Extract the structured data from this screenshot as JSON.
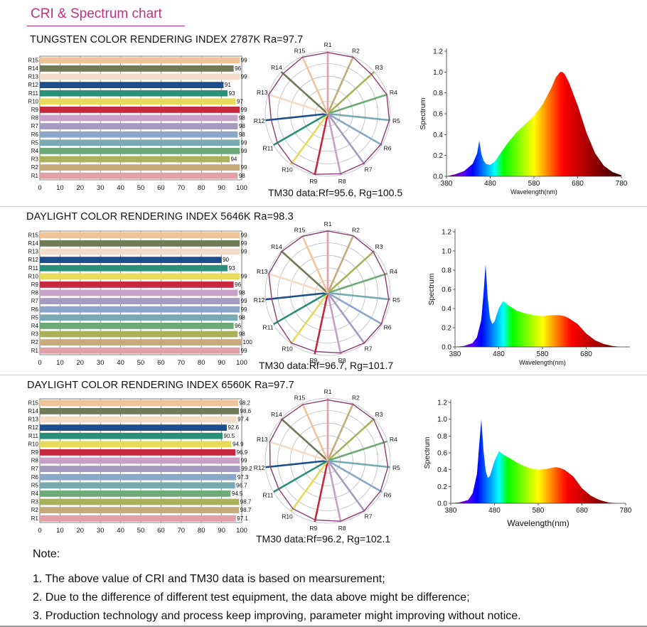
{
  "page_title": "CRI & Spectrum chart",
  "colors": {
    "accent": "#c0307d",
    "R1": "#e0a0a8",
    "R2": "#c7aa7a",
    "R3": "#a9b25a",
    "R4": "#6daa78",
    "R5": "#79aab2",
    "R6": "#8aa6c8",
    "R7": "#a59ac2",
    "R8": "#c8a0c6",
    "R9": "#c6283e",
    "R10": "#e8da5a",
    "R11": "#2a8f78",
    "R12": "#1e4f8c",
    "R13": "#f3dcc8",
    "R14": "#6f7a58",
    "R15": "#f0c49a",
    "polygon": "#8e3a72"
  },
  "blocks": [
    {
      "title": "TUNGSTEN COLOR RENDERING INDEX 2787K Ra=97.7",
      "tm30": "TM30 data:Rf=95.6, Rg=100.5"
    },
    {
      "title": "DAYLIGHT COLOR RENDERING INDEX 5646K  Ra=98.3",
      "tm30": "TM30 data:Rf=96.7, Rg=101.7"
    },
    {
      "title": "DAYLIGHT COLOR RENDERING INDEX 6560K  Ra=97.7",
      "tm30": "TM30 data:Rf=96.2, Rg=102.1"
    }
  ],
  "chart_data": [
    {
      "type": "bar",
      "orientation": "horizontal",
      "categories": [
        "R1",
        "R2",
        "R3",
        "R4",
        "R5",
        "R6",
        "R7",
        "R8",
        "R9",
        "R10",
        "R11",
        "R12",
        "R13",
        "R14",
        "R15"
      ],
      "values": [
        98,
        99,
        94,
        99,
        99,
        98,
        98,
        98,
        99,
        97,
        93,
        91,
        99,
        96,
        99
      ],
      "value_labels": [
        "98",
        "99",
        "94",
        "99",
        "99",
        "98",
        "98",
        "98",
        "99",
        "97",
        "93",
        "91",
        "99",
        "96",
        "99"
      ],
      "xlim": [
        0,
        100
      ],
      "xticks": [
        0,
        10,
        20,
        30,
        40,
        50,
        60,
        70,
        80,
        90,
        100
      ]
    },
    {
      "type": "radar",
      "categories": [
        "R1",
        "R2",
        "R3",
        "R4",
        "R5",
        "R6",
        "R7",
        "R8",
        "R9",
        "R10",
        "R11",
        "R12",
        "R13",
        "R14",
        "R15"
      ],
      "values": [
        98,
        99,
        94,
        99,
        99,
        98,
        98,
        98,
        99,
        97,
        93,
        91,
        99,
        96,
        99
      ]
    },
    {
      "type": "area",
      "xlabel": "Wavelength(nm)",
      "ylabel": "Spectrum",
      "xlim": [
        380,
        780
      ],
      "ylim": [
        0,
        1.2
      ],
      "xtick_labels": [
        "380",
        "480",
        "580",
        "680",
        "780"
      ],
      "ytick_labels": [
        "0.0",
        "0.2",
        "0.4",
        "0.6",
        "0.8",
        "1.0",
        "1.2"
      ],
      "x": [
        380,
        400,
        420,
        440,
        450,
        455,
        460,
        465,
        470,
        480,
        490,
        500,
        520,
        540,
        560,
        580,
        600,
        620,
        630,
        640,
        645,
        650,
        660,
        680,
        700,
        720,
        740,
        760,
        780
      ],
      "y": [
        0.0,
        0.02,
        0.05,
        0.12,
        0.22,
        0.34,
        0.21,
        0.15,
        0.12,
        0.11,
        0.14,
        0.2,
        0.32,
        0.42,
        0.5,
        0.58,
        0.69,
        0.85,
        0.95,
        1.0,
        1.0,
        0.98,
        0.9,
        0.68,
        0.42,
        0.22,
        0.1,
        0.04,
        0.01
      ]
    },
    {
      "type": "bar",
      "orientation": "horizontal",
      "categories": [
        "R1",
        "R2",
        "R3",
        "R4",
        "R5",
        "R6",
        "R7",
        "R8",
        "R9",
        "R10",
        "R11",
        "R12",
        "R13",
        "R14",
        "R15"
      ],
      "values": [
        99,
        100,
        98,
        96,
        98,
        99,
        99,
        98,
        96,
        99,
        93,
        90,
        99,
        99,
        99
      ],
      "value_labels": [
        "99",
        "100",
        "98",
        "96",
        "98",
        "99",
        "99",
        "98",
        "96",
        "99",
        "93",
        "90",
        "99",
        "99",
        "99"
      ],
      "xlim": [
        0,
        100
      ],
      "xticks": [
        0,
        10,
        20,
        30,
        40,
        50,
        60,
        70,
        80,
        90,
        100
      ]
    },
    {
      "type": "radar",
      "categories": [
        "R1",
        "R2",
        "R3",
        "R4",
        "R5",
        "R6",
        "R7",
        "R8",
        "R9",
        "R10",
        "R11",
        "R12",
        "R13",
        "R14",
        "R15"
      ],
      "values": [
        99,
        100,
        98,
        96,
        98,
        99,
        99,
        98,
        96,
        99,
        93,
        90,
        99,
        99,
        99
      ]
    },
    {
      "type": "area",
      "xlabel": "Wavelength(nm)",
      "ylabel": "Spectrum",
      "xlim": [
        380,
        780
      ],
      "ylim": [
        0,
        1.2
      ],
      "xtick_labels": [
        "380",
        "480",
        "580",
        "680"
      ],
      "ytick_labels": [
        "0.0",
        "0.2",
        "0.4",
        "0.6",
        "0.8",
        "1.0",
        "1.2"
      ],
      "x": [
        380,
        400,
        420,
        430,
        440,
        445,
        450,
        455,
        460,
        465,
        470,
        480,
        490,
        500,
        520,
        540,
        560,
        580,
        600,
        620,
        630,
        640,
        660,
        680,
        700,
        720,
        740,
        760,
        780
      ],
      "y": [
        0.0,
        0.01,
        0.04,
        0.1,
        0.28,
        0.55,
        0.86,
        0.5,
        0.3,
        0.24,
        0.26,
        0.4,
        0.48,
        0.44,
        0.38,
        0.35,
        0.33,
        0.32,
        0.33,
        0.33,
        0.32,
        0.3,
        0.24,
        0.14,
        0.07,
        0.03,
        0.01,
        0.0,
        0.0
      ]
    },
    {
      "type": "bar",
      "orientation": "horizontal",
      "categories": [
        "R1",
        "R2",
        "R3",
        "R4",
        "R5",
        "R6",
        "R7",
        "R8",
        "R9",
        "R10",
        "R11",
        "R12",
        "R13",
        "R14",
        "R15"
      ],
      "values": [
        97.1,
        98.7,
        98.7,
        94.5,
        96.7,
        97.3,
        99.2,
        99,
        96.9,
        94.9,
        90.5,
        92.6,
        97.4,
        98.6,
        98.2
      ],
      "value_labels": [
        "97.1",
        "98.7",
        "98.7",
        "94.5",
        "96.7",
        "97.3",
        "99.2",
        "99",
        "96.9",
        "94.9",
        "90.5",
        "92.6",
        "97.4",
        "98.6",
        "98.2"
      ],
      "xlim": [
        0,
        100
      ],
      "xticks": [
        0,
        10,
        20,
        30,
        40,
        50,
        60,
        70,
        80,
        90,
        100
      ]
    },
    {
      "type": "radar",
      "categories": [
        "R1",
        "R2",
        "R3",
        "R4",
        "R5",
        "R6",
        "R7",
        "R8",
        "R9",
        "R10",
        "R11",
        "R12",
        "R13",
        "R14",
        "R15"
      ],
      "values": [
        97.1,
        98.7,
        98.7,
        94.5,
        96.7,
        97.3,
        99.2,
        99,
        96.9,
        94.9,
        90.5,
        92.6,
        97.4,
        98.6,
        98.2
      ]
    },
    {
      "type": "area",
      "xlabel": "Wavelength(nm)",
      "ylabel": "Spectrum",
      "xlim": [
        380,
        780
      ],
      "ylim": [
        0,
        1.2
      ],
      "xtick_labels": [
        "380",
        "480",
        "580",
        "680",
        "780"
      ],
      "ytick_labels": [
        "0.0",
        "0.2",
        "0.4",
        "0.6",
        "0.8",
        "1.0",
        "1.2"
      ],
      "x": [
        380,
        400,
        420,
        430,
        440,
        445,
        450,
        455,
        460,
        465,
        470,
        480,
        490,
        500,
        520,
        540,
        560,
        580,
        600,
        620,
        630,
        640,
        660,
        680,
        700,
        720,
        740,
        760,
        780
      ],
      "y": [
        0.0,
        0.01,
        0.04,
        0.12,
        0.35,
        0.7,
        1.0,
        0.62,
        0.38,
        0.3,
        0.33,
        0.5,
        0.62,
        0.58,
        0.52,
        0.46,
        0.42,
        0.4,
        0.41,
        0.43,
        0.42,
        0.4,
        0.32,
        0.18,
        0.09,
        0.04,
        0.01,
        0.0,
        0.0
      ]
    }
  ],
  "notes": {
    "label": "Note:",
    "lines": [
      "1. The above value of CRI and TM30 data is based on mearsurement;",
      "2. Due to the difference of different test equipment, the data above might be difference;",
      "3. Production technology and process keep improving, parameter might improving without notice."
    ]
  }
}
